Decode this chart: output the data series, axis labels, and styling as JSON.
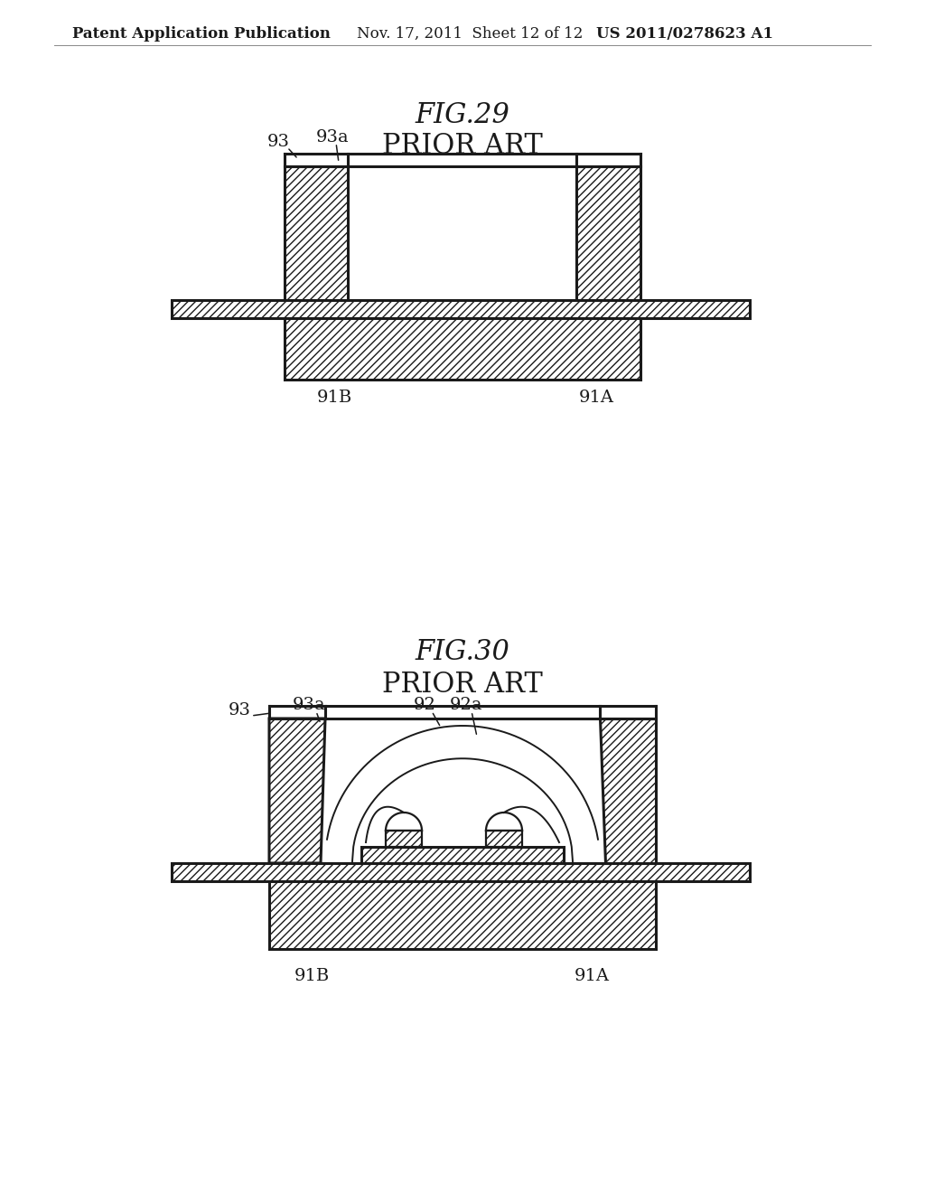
{
  "bg_color": "#ffffff",
  "header_text1": "Patent Application Publication",
  "header_text2": "Nov. 17, 2011  Sheet 12 of 12",
  "header_text3": "US 2011/0278623 A1",
  "fig29_title": "FIG.29",
  "fig29_subtitle": "PRIOR ART",
  "fig30_title": "FIG.30",
  "fig30_subtitle": "PRIOR ART",
  "line_color": "#1a1a1a",
  "label_fontsize": 14,
  "title_fontsize": 22,
  "subtitle_fontsize": 22,
  "header_fontsize": 12
}
